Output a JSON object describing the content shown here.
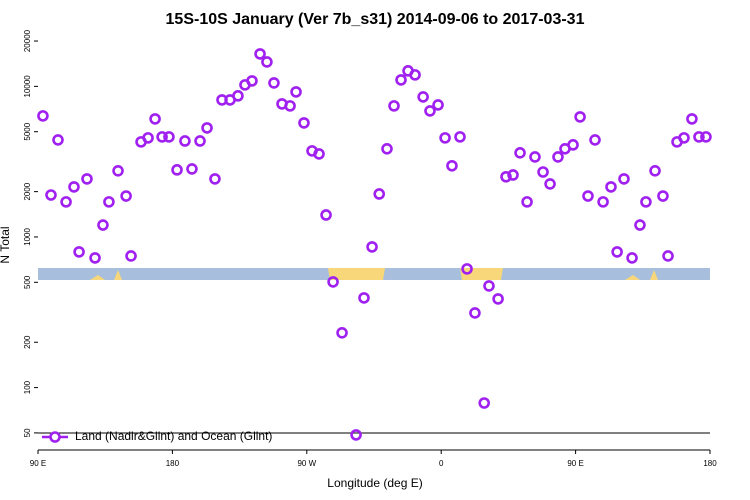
{
  "chart_data": {
    "type": "scatter",
    "title": "15S-10S January (Ver 7b_s31)   2014-09-06 to 2017-03-31",
    "xlabel": "Longitude (deg E)",
    "ylabel": "N Total",
    "log_y": true,
    "legend": "lower left",
    "xlim": [
      90,
      540
    ],
    "xticks": [
      {
        "value": 90,
        "label": "90 E"
      },
      180,
      {
        "value": 270,
        "label": "90 W"
      },
      {
        "value": 360,
        "label": "0"
      },
      {
        "value": 450,
        "label": "90 E"
      },
      {
        "value": 540,
        "label": "180"
      }
    ],
    "ylim": [
      38.5,
      21600
    ],
    "yticks": [
      50,
      100,
      200,
      500,
      1000,
      2000,
      5000,
      10000,
      20000
    ],
    "series": [
      {
        "name": "Land (Nadir&Glint) and Ocean (Glint)",
        "color": "#a020f0",
        "x": [
          93.3,
          98.7,
          103.4,
          108.8,
          114.1,
          117.5,
          122.8,
          128.2,
          133.5,
          137.5,
          143.6,
          149,
          152.3,
          159,
          163.7,
          168.4,
          173.1,
          177.7,
          183.1,
          188.4,
          193.1,
          198.5,
          203.2,
          208.5,
          213.2,
          218.6,
          223.9,
          228.6,
          233.3,
          238.7,
          243.3,
          248,
          253.4,
          258.8,
          262.8,
          268.1,
          273.5,
          278.2,
          282.9,
          287.6,
          293.6,
          303,
          308.3,
          313.7,
          318.5,
          323.7,
          328.4,
          333.1,
          337.8,
          342.5,
          347.9,
          352.5,
          357.9,
          362.6,
          367.2,
          372.6,
          377.3,
          382.6,
          388.8,
          392,
          398.1,
          403.4,
          408.1,
          412.8,
          417.5,
          422.8,
          428.2,
          432.9,
          438.2,
          442.9,
          448.3,
          453,
          458.3,
          463,
          468.4,
          473.7,
          477.8,
          482.4,
          487.8,
          493.1,
          497.1,
          503.2,
          508.5,
          511.9,
          517.9,
          522.6,
          527.9,
          532.6,
          537.3
        ],
        "values": [
          6370,
          1900,
          4410,
          1710,
          2150,
          796,
          2430,
          726,
          1200,
          1710,
          2750,
          1870,
          748,
          4280,
          4550,
          6080,
          4620,
          4620,
          2790,
          4340,
          2830,
          4340,
          5300,
          2430,
          8130,
          8130,
          8650,
          10230,
          10870,
          16430,
          14530,
          10540,
          7650,
          7420,
          9190,
          5720,
          3730,
          3560,
          1400,
          503,
          231,
          48.5,
          394,
          859,
          1930,
          3850,
          7420,
          11040,
          12680,
          11920,
          8510,
          6870,
          7530,
          4550,
          2970,
          4620,
          614,
          313,
          79,
          473,
          388,
          2510,
          2580,
          3620,
          1710,
          3400,
          2700,
          2250,
          3400,
          3850,
          4090,
          6270,
          1870,
          4410,
          1710,
          2150,
          796,
          2430,
          726,
          1200,
          1710,
          2750,
          1870,
          748,
          4280,
          4550,
          6080,
          4620,
          4620
        ]
      }
    ]
  }
}
